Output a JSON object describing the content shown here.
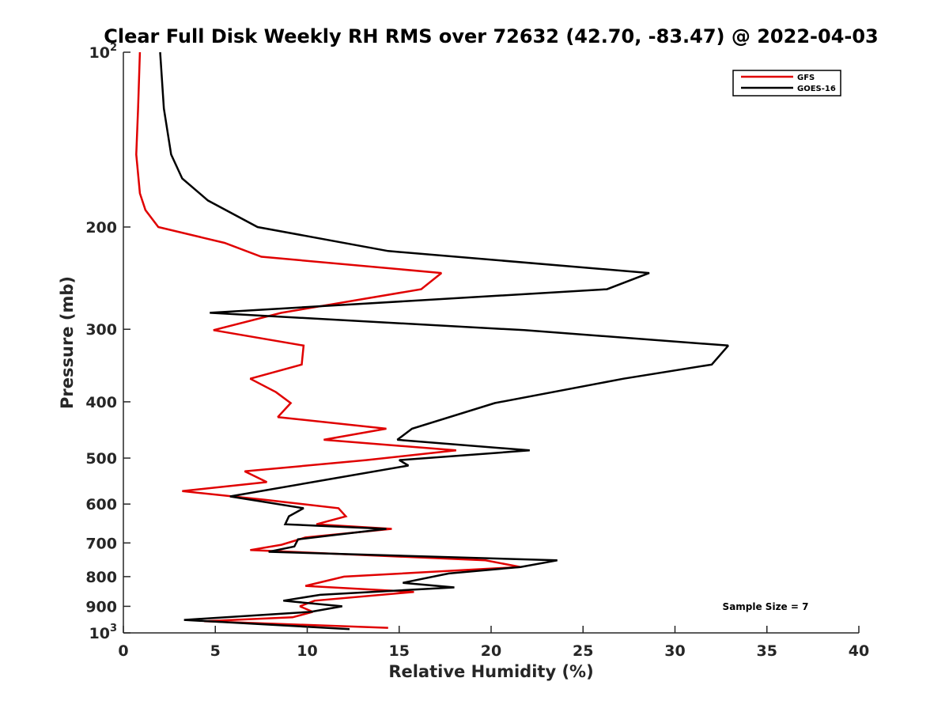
{
  "chart_data": {
    "type": "line",
    "title": "Clear Full Disk Weekly RH RMS over 72632 (42.70, -83.47) @ 2022-04-03",
    "xlabel": "Relative Humidity (%)",
    "ylabel": "Pressure (mb)",
    "xlim": [
      0,
      40
    ],
    "ylim": [
      100,
      1000
    ],
    "y_scale": "log",
    "y_reversed": true,
    "grid": false,
    "legend_position": "top-right",
    "x_ticks": [
      0,
      5,
      10,
      15,
      20,
      25,
      30,
      35,
      40
    ],
    "x_tick_labels": [
      "0",
      "5",
      "10",
      "15",
      "20",
      "25",
      "30",
      "35",
      "40"
    ],
    "y_ticks": [
      100,
      200,
      300,
      400,
      500,
      600,
      700,
      800,
      900,
      1000
    ],
    "y_tick_labels": [
      {
        "base": "10",
        "exp": "2"
      },
      {
        "base": "200",
        "exp": ""
      },
      {
        "base": "300",
        "exp": ""
      },
      {
        "base": "400",
        "exp": ""
      },
      {
        "base": "500",
        "exp": ""
      },
      {
        "base": "600",
        "exp": ""
      },
      {
        "base": "700",
        "exp": ""
      },
      {
        "base": "800",
        "exp": ""
      },
      {
        "base": "900",
        "exp": ""
      },
      {
        "base": "10",
        "exp": "3"
      }
    ],
    "series": [
      {
        "name": "GFS",
        "color": "#e00000",
        "points": [
          [
            0.9,
            100
          ],
          [
            0.8,
            125
          ],
          [
            0.7,
            150
          ],
          [
            0.9,
            175
          ],
          [
            1.2,
            187
          ],
          [
            1.9,
            200
          ],
          [
            5.5,
            213
          ],
          [
            7.5,
            225
          ],
          [
            17.3,
            240
          ],
          [
            16.2,
            256
          ],
          [
            8.6,
            281
          ],
          [
            4.9,
            301
          ],
          [
            9.8,
            320
          ],
          [
            9.7,
            345
          ],
          [
            6.9,
            365
          ],
          [
            8.3,
            385
          ],
          [
            9.1,
            402
          ],
          [
            8.4,
            425
          ],
          [
            14.3,
            445
          ],
          [
            10.9,
            465
          ],
          [
            18.1,
            485
          ],
          [
            13.2,
            504
          ],
          [
            6.6,
            527
          ],
          [
            7.8,
            550
          ],
          [
            3.2,
            570
          ],
          [
            7.7,
            590
          ],
          [
            11.7,
            610
          ],
          [
            12.1,
            630
          ],
          [
            10.5,
            650
          ],
          [
            14.6,
            662
          ],
          [
            9.9,
            685
          ],
          [
            8.6,
            705
          ],
          [
            6.9,
            720
          ],
          [
            19.7,
            750
          ],
          [
            21.6,
            770
          ],
          [
            12.0,
            800
          ],
          [
            9.9,
            830
          ],
          [
            15.8,
            850
          ],
          [
            10.4,
            880
          ],
          [
            9.6,
            900
          ],
          [
            10.3,
            920
          ],
          [
            9.2,
            940
          ],
          [
            4.4,
            955
          ],
          [
            14.4,
            980
          ]
        ]
      },
      {
        "name": "GOES-16",
        "color": "#000000",
        "points": [
          [
            2.0,
            100
          ],
          [
            2.2,
            125
          ],
          [
            2.6,
            150
          ],
          [
            3.2,
            165
          ],
          [
            4.6,
            180
          ],
          [
            7.3,
            200
          ],
          [
            14.4,
            220
          ],
          [
            28.6,
            240
          ],
          [
            26.3,
            256
          ],
          [
            4.7,
            281
          ],
          [
            21.8,
            301
          ],
          [
            32.9,
            320
          ],
          [
            32.0,
            345
          ],
          [
            27.2,
            365
          ],
          [
            20.2,
            402
          ],
          [
            15.7,
            445
          ],
          [
            14.9,
            465
          ],
          [
            22.1,
            485
          ],
          [
            15.0,
            504
          ],
          [
            15.5,
            515
          ],
          [
            10.3,
            550
          ],
          [
            5.8,
            582
          ],
          [
            9.8,
            610
          ],
          [
            9.0,
            630
          ],
          [
            8.8,
            650
          ],
          [
            14.3,
            662
          ],
          [
            9.5,
            690
          ],
          [
            9.3,
            710
          ],
          [
            7.9,
            725
          ],
          [
            23.6,
            750
          ],
          [
            21.6,
            770
          ],
          [
            17.7,
            790
          ],
          [
            15.2,
            820
          ],
          [
            18.0,
            835
          ],
          [
            10.7,
            860
          ],
          [
            8.7,
            880
          ],
          [
            11.9,
            900
          ],
          [
            10.2,
            920
          ],
          [
            3.3,
            950
          ],
          [
            12.3,
            985
          ]
        ]
      }
    ],
    "annotations": [
      "Sample Size = 7"
    ]
  }
}
